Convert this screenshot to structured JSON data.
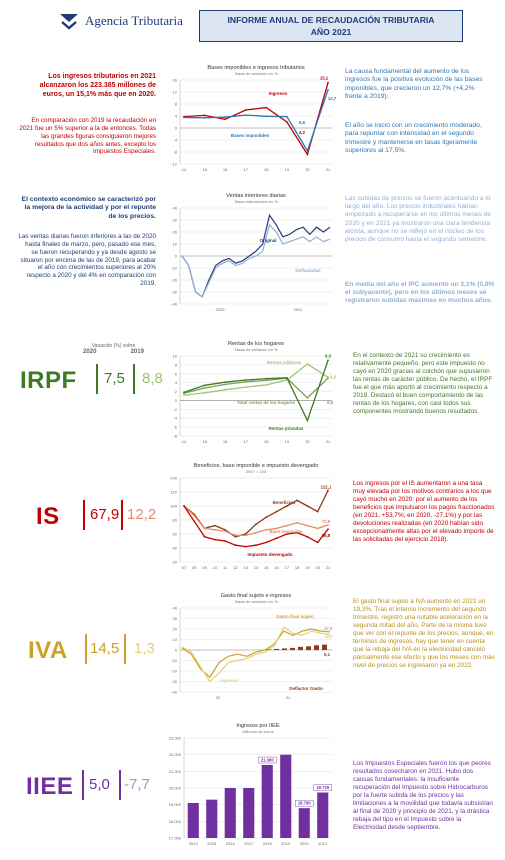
{
  "header": {
    "logo_text": "Agencia Tributaria",
    "title_line1": "INFORME ANUAL DE RECAUDACIÓN TRIBUTARIA",
    "title_line2": "AÑO 2021"
  },
  "section1": {
    "left_highlight": "Los ingresos tributarios en 2021 alcanzaron los 223.385 millones de euros, un 15,1% más que en 2020.",
    "left_body": "En comparación con 2019 la recaudación en 2021 fue un 5% superior a la de entonces. Todas las grandes figuras consiguieron mejores resultados que dos años antes, excepto los Impuestos Especiales.",
    "right_p1": "La causa fundamental del aumento de los ingresos fue la positiva evolución de las bases imponibles, que crecieron un 12,7% (+4,2% frente a 2019).",
    "right_p2": "El año se inició con un crecimiento moderado, para repuntar con intensidad en el segundo trimestre y mantenerse en tasas ligeramente superiores al 17,5%."
  },
  "section2": {
    "left_highlight": "El contexto económico se caracterizó por la mejora de la actividad y por el repunte de los precios.",
    "left_body": "Las ventas diarias fueron inferiores a las de 2020 hasta finales de marzo, pero, pasado ese mes, se fueron recuperando y ya desde agosto se situaron por encima de las de 2019, para acabar el año con crecimientos superiores al 20% respecto a 2020 y del 4% en comparación con 2019.",
    "right_p1": "Las subidas de precios se fueron acentuando a lo largo del año. Los precios industriales habían empezado a recuperarse en los últimos meses de 2020 y en 2021 ya mostraron una clara tendencia alcista, aunque no se reflejó en el núcleo de los precios de consumo hasta el segundo semestre.",
    "right_p2": "En media del año el IPC aumentó un 3,1% (0,8% el subyacente), pero en los últimos meses se registraron subidas máximas en muchos años."
  },
  "variation_header": {
    "label": "Variación (%) sobre",
    "col1": "2020",
    "col2": "2019"
  },
  "taxes": [
    {
      "name": "IRPF",
      "v2020": "7,5",
      "v2019": "8,8",
      "color": "#3f7a22",
      "light": "#9cc57a",
      "text": "En el contexto de 2021 su crecimiento es relativamente pequeño, pero este impuesto no cayó en 2020 gracias al colchón que supusieron las rentas de carácter público. De hecho, el IRPF fue el que más aportó al crecimiento respecto a 2019. Destacó el buen comportamiento de las rentas de los hogares, con casi todos sus componentes mostrando buenos resultados."
    },
    {
      "name": "IS",
      "v2020": "67,9",
      "v2019": "12,2",
      "color": "#c00000",
      "light": "#e58a6a",
      "text": "Los ingresos por el IS aumentaron a una tasa muy elevada por los motivos contrarios a los que cayó mucho en 2020: por el aumento de los beneficios que impulsaron los pagos fraccionados (en 2021, +53,7%; en 2020, -27,1%) y por las devoluciones realizadas (en 2020 habían sido excepcionalmente altas por el elevado importe de las solicitadas del ejercicio 2018)."
    },
    {
      "name": "IVA",
      "v2020": "14,5",
      "v2019": "1,3",
      "color": "#c9a227",
      "light": "#e6cf7a",
      "text": "El gasto final sujeto a IVA aumentó en 2021 un 19,3%. Tras el intenso incremento del segundo trimestre, registró una notable aceleración en la segunda mitad del año. Parte de la misma tuvo que ver con el repunte de los precios, aunque, en términos de ingresos, hay que tener en cuenta que la rebaja del IVA en la electricidad canceló parcialmente ese efecto y que los meses con más nivel de precios se ingresaron ya en 2022."
    },
    {
      "name": "IIEE",
      "v2020": "5,0",
      "v2019": "-7,7",
      "color": "#7030a0",
      "light": "#b48ad4",
      "text": "Los Impuestos Especiales fueron los que peores resultados cosecharon en 2021. Hubo dos causas fundamentales: la insuficiente recuperación del Impuesto sobre Hidrocarburos por la fuerte subida de los precios y las limitaciones a la movilidad que todavía subsistían al final de 2020 y principio de 2021, y la drástica rebaja del tipo en el Impuesto sobre la Electricidad desde septiembre."
    }
  ],
  "chart_data": [
    {
      "type": "line",
      "title": "Bases imponibles e ingresos tributarios",
      "subtitle": "Tasas de variación en %",
      "x": [
        "14",
        "15",
        "16",
        "17",
        "18",
        "19",
        "20",
        "21"
      ],
      "series": [
        {
          "name": "Ingresos",
          "values": [
            3.8,
            4.2,
            2.9,
            6.0,
            6.8,
            2.0,
            -8.8,
            15.1
          ],
          "color": "#c00000"
        },
        {
          "name": "Bases imponibles",
          "values": [
            3.5,
            3.4,
            3.6,
            4.3,
            3.9,
            3.8,
            -7.6,
            12.7
          ],
          "color": "#2e75b6"
        }
      ],
      "ylim": [
        -12,
        16
      ],
      "yticks": [
        "16",
        "12",
        "8",
        "4",
        "0",
        "-4",
        "-8",
        "-12"
      ],
      "annotations": [
        "15,1",
        "12,7",
        "5,6",
        "4,2"
      ]
    },
    {
      "type": "line",
      "title": "Ventas interiores diarias",
      "subtitle": "Tasas interanuales en %",
      "series": [
        {
          "name": "Original",
          "color": "#1f3c78"
        },
        {
          "name": "Deflactadas",
          "color": "#8fb0d8"
        }
      ],
      "ylim": [
        -40,
        40
      ],
      "yticks": [
        "40",
        "30",
        "20",
        "10",
        "0",
        "-10",
        "-20",
        "-30",
        "-40"
      ],
      "x_labels": [
        "2020",
        "2021"
      ]
    },
    {
      "type": "line",
      "title": "Rentas de los hogares",
      "subtitle": "Tasas de variación en %",
      "x": [
        "14",
        "15",
        "16",
        "17",
        "18",
        "19",
        "20",
        "21"
      ],
      "series": [
        {
          "name": "Rentas públicas",
          "values": [
            1.2,
            1.7,
            2.4,
            3.0,
            3.5,
            4.6,
            8.2,
            5.2
          ],
          "color": "#9cc57a"
        },
        {
          "name": "Total rentas de los hogares",
          "values": [
            1.6,
            2.8,
            3.6,
            4.2,
            4.5,
            5.0,
            0.6,
            5.0
          ],
          "color": "#76a353"
        },
        {
          "name": "Rentas privadas",
          "values": [
            1.8,
            3.4,
            4.1,
            4.6,
            4.9,
            5.1,
            -4.5,
            9.0
          ],
          "color": "#3f7a22"
        }
      ],
      "ylim": [
        -8,
        10
      ],
      "yticks": [
        "10",
        "8",
        "6",
        "4",
        "2",
        "0",
        "-2",
        "-4",
        "-6",
        "-8"
      ],
      "annotations": [
        "9,0",
        "5,2",
        "0,6"
      ]
    },
    {
      "type": "line",
      "title": "Beneficios, base imponible e impuesto devengado",
      "subtitle": "2007 = 100",
      "x": [
        "07",
        "08",
        "09",
        "10",
        "11",
        "12",
        "13",
        "14",
        "15",
        "16",
        "17",
        "18",
        "19",
        "20",
        "21"
      ],
      "series": [
        {
          "name": "Beneficios",
          "values": [
            100,
            88,
            68,
            72,
            66,
            56,
            60,
            74,
            84,
            92,
            100,
            108,
            100,
            92,
            122.1
          ],
          "color": "#8b3a1a"
        },
        {
          "name": "Base imponible",
          "values": [
            100,
            86,
            68,
            66,
            64,
            58,
            58,
            62,
            66,
            68,
            72,
            76,
            72,
            68,
            72.9
          ],
          "color": "#e58a6a"
        },
        {
          "name": "Impuesto devengado",
          "values": [
            100,
            78,
            56,
            52,
            50,
            44,
            42,
            44,
            48,
            54,
            60,
            62,
            56,
            48,
            66.8
          ],
          "color": "#c00000"
        }
      ],
      "ylim": [
        20,
        140
      ],
      "yticks": [
        "140",
        "120",
        "100",
        "80",
        "60",
        "40",
        "20"
      ],
      "annotations": [
        "122,1",
        "72,9",
        "66,8"
      ]
    },
    {
      "type": "line",
      "title": "Gasto final sujeto e ingresos",
      "subtitle": "Tasas de variación en %",
      "series": [
        {
          "name": "Gasto final sujeto",
          "color": "#c9a227"
        },
        {
          "name": "Ingresos",
          "color": "#e6cf7a"
        },
        {
          "name": "Deflactor Gasto",
          "color": "#8b3a1a"
        }
      ],
      "ylim": [
        -40,
        40
      ],
      "yticks": [
        "40",
        "30",
        "20",
        "10",
        "0",
        "-10",
        "-20",
        "-30",
        "-40"
      ],
      "x_labels": [
        "20",
        "21"
      ],
      "annotations": [
        "17,2",
        "14,5",
        "5,1"
      ]
    },
    {
      "type": "bar",
      "title": "Ingresos por IIEE",
      "subtitle": "Millones de euros",
      "categories": [
        "2014",
        "2015",
        "2016",
        "2017",
        "2018",
        "2019",
        "2020",
        "2021"
      ],
      "values": [
        19100,
        19300,
        20000,
        20000,
        21380,
        22000,
        18790,
        19729
      ],
      "ylim": [
        17000,
        23000
      ],
      "yticks": [
        "23.000",
        "22.000",
        "21.000",
        "20.000",
        "19.000",
        "18.000",
        "17.000"
      ],
      "data_labels": {
        "4": "21.380",
        "6": "18.790",
        "7": "19.729"
      },
      "color": "#7030a0"
    }
  ]
}
